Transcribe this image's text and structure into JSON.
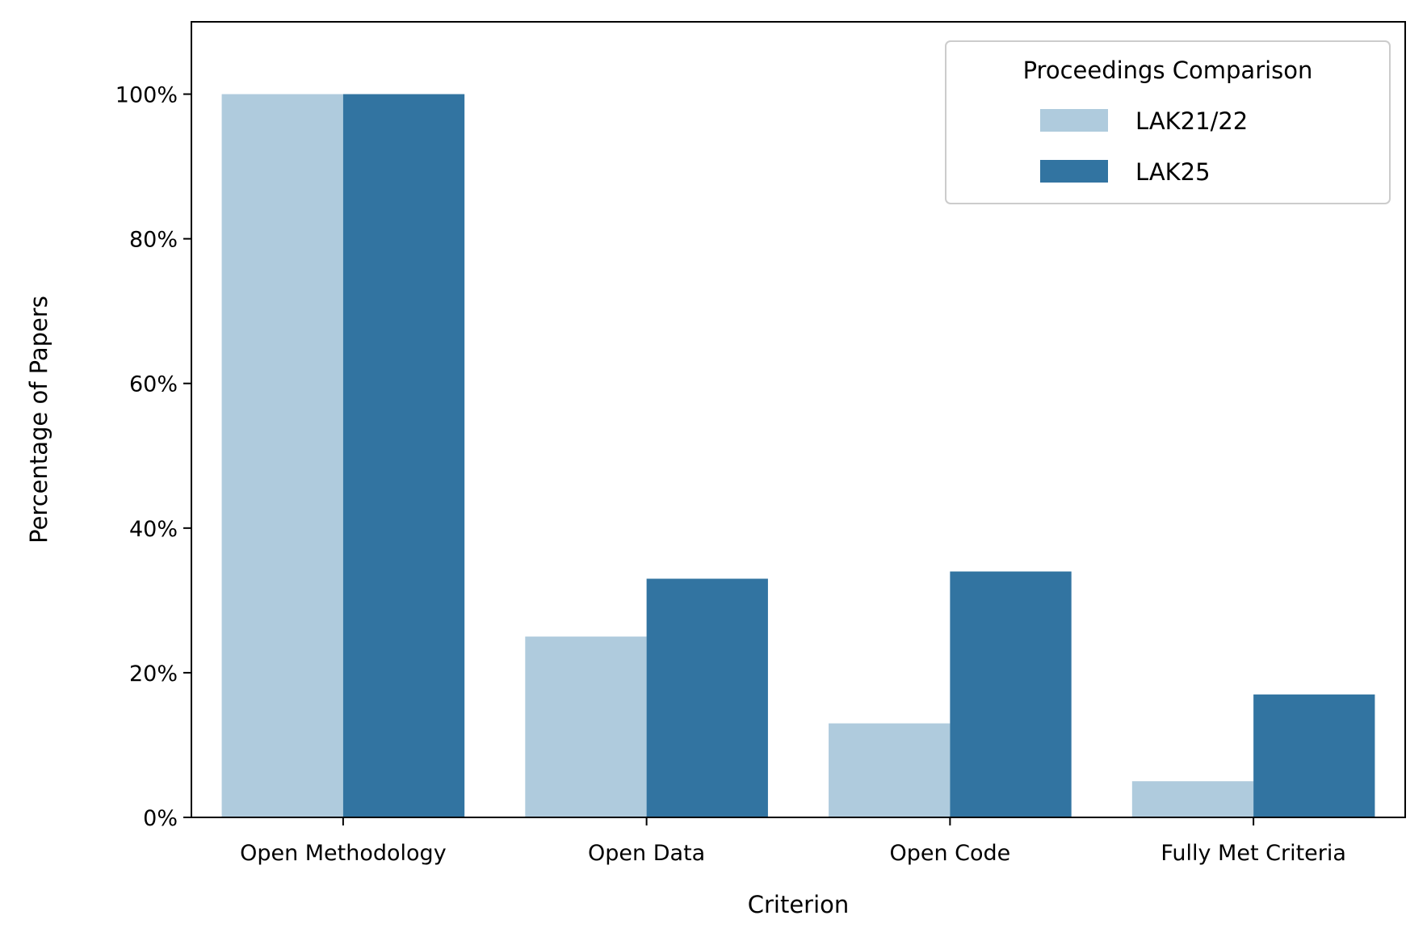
{
  "chart_data": {
    "type": "bar",
    "title": "",
    "xlabel": "Criterion",
    "ylabel": "Percentage of Papers",
    "categories": [
      "Open Methodology",
      "Open Data",
      "Open Code",
      "Fully Met Criteria"
    ],
    "series": [
      {
        "name": "LAK21/22",
        "color": "#afcbdd",
        "values": [
          100,
          25,
          13,
          5
        ]
      },
      {
        "name": "LAK25",
        "color": "#3274a1",
        "values": [
          100,
          33,
          34,
          17
        ]
      }
    ],
    "ylim": [
      0,
      110
    ],
    "yticks": [
      0,
      20,
      40,
      60,
      80,
      100
    ],
    "ytick_labels": [
      "0%",
      "20%",
      "40%",
      "60%",
      "80%",
      "100%"
    ],
    "grid": false,
    "legend": {
      "title": "Proceedings Comparison",
      "placement": "top-right"
    }
  }
}
